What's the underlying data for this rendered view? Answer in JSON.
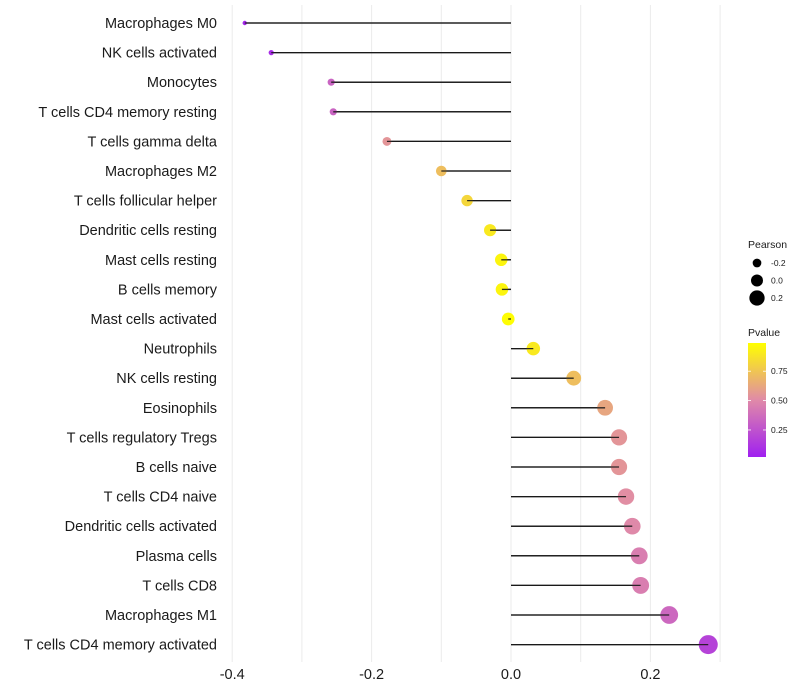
{
  "chart_data": {
    "type": "lollipop",
    "title": "",
    "xlabel": "",
    "ylabel": "",
    "xlim": [
      -0.42,
      0.3
    ],
    "x_ticks": [
      -0.4,
      -0.2,
      0.0,
      0.2
    ],
    "x_tick_labels": [
      "-0.4",
      "-0.2",
      "0.0",
      "0.2"
    ],
    "grid": true,
    "categories": [
      "Macrophages M0",
      "NK cells activated",
      "Monocytes",
      "T cells CD4 memory resting",
      "T cells gamma delta",
      "Macrophages M2",
      "T cells follicular helper",
      "Dendritic cells resting",
      "Mast cells resting",
      "B cells memory",
      "Mast cells activated",
      "Neutrophils",
      "NK cells resting",
      "Eosinophils",
      "T cells regulatory  Tregs ",
      "B cells naive",
      "T cells CD4 naive",
      "Dendritic cells activated",
      "Plasma cells",
      "T cells CD8",
      "Macrophages M1",
      "T cells CD4 memory activated"
    ],
    "pearson": [
      -0.382,
      -0.344,
      -0.258,
      -0.255,
      -0.178,
      -0.1,
      -0.063,
      -0.03,
      -0.014,
      -0.013,
      -0.004,
      0.032,
      0.09,
      0.135,
      0.155,
      0.155,
      0.165,
      0.174,
      0.184,
      0.186,
      0.227,
      0.283
    ],
    "pvalue": [
      0.05,
      0.08,
      0.33,
      0.33,
      0.55,
      0.72,
      0.82,
      0.9,
      0.95,
      0.95,
      0.98,
      0.9,
      0.72,
      0.62,
      0.55,
      0.55,
      0.52,
      0.5,
      0.45,
      0.45,
      0.35,
      0.18
    ],
    "legend": {
      "position": "right",
      "size_title": "Pearson",
      "size_labels": [
        "-0.2",
        "0.0",
        "0.2"
      ],
      "size_values": [
        -0.2,
        0.0,
        0.2
      ],
      "color_title": "Pvalue",
      "color_labels": [
        "0.75",
        "0.50",
        "0.25"
      ],
      "color_values": [
        0.75,
        0.5,
        0.25
      ],
      "color_low": "#a020f0",
      "color_mid": "#e08aa8",
      "color_high": "#ffff00",
      "color_range": [
        0.02,
        0.99
      ]
    }
  }
}
